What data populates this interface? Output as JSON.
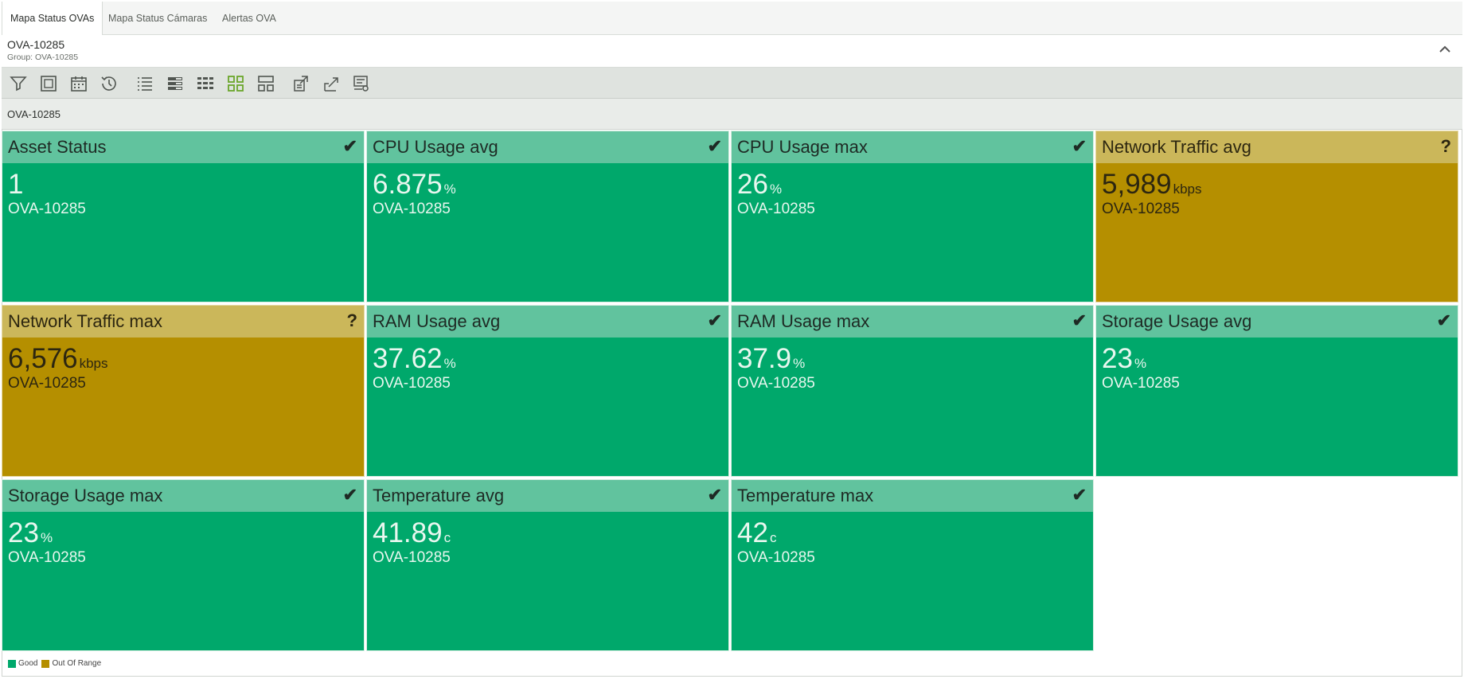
{
  "tabs": [
    {
      "label": "Mapa Status OVAs",
      "active": true
    },
    {
      "label": "Mapa Status Cámaras",
      "active": false
    },
    {
      "label": "Alertas OVA",
      "active": false
    }
  ],
  "header": {
    "title": "OVA-10285",
    "subtitle": "Group: OVA-10285"
  },
  "toolbar": {
    "icons": [
      "filter-icon",
      "zoom-fit-icon",
      "calendar-icon",
      "history-icon",
      "list-icon",
      "list-detail-icon",
      "compact-grid-icon",
      "tile-grid-icon",
      "split-layout-icon",
      "export-icon",
      "report-icon",
      "config-icon"
    ]
  },
  "breadcrumb": {
    "label": "OVA-10285"
  },
  "status_colors": {
    "good": "#00a86b",
    "out_of_range": "#b58f00"
  },
  "tiles": [
    {
      "title": "Asset Status",
      "value": "1",
      "unit": "",
      "asset": "OVA-10285",
      "status": "good",
      "mark": "✔"
    },
    {
      "title": "CPU Usage avg",
      "value": "6.875",
      "unit": "%",
      "asset": "OVA-10285",
      "status": "good",
      "mark": "✔"
    },
    {
      "title": "CPU Usage max",
      "value": "26",
      "unit": "%",
      "asset": "OVA-10285",
      "status": "good",
      "mark": "✔"
    },
    {
      "title": "Network Traffic avg",
      "value": "5,989",
      "unit": "kbps",
      "asset": "OVA-10285",
      "status": "out_of_range",
      "mark": "?"
    },
    {
      "title": "Network Traffic max",
      "value": "6,576",
      "unit": "kbps",
      "asset": "OVA-10285",
      "status": "out_of_range",
      "mark": "?"
    },
    {
      "title": "RAM Usage avg",
      "value": "37.62",
      "unit": "%",
      "asset": "OVA-10285",
      "status": "good",
      "mark": "✔"
    },
    {
      "title": "RAM Usage max",
      "value": "37.9",
      "unit": "%",
      "asset": "OVA-10285",
      "status": "good",
      "mark": "✔"
    },
    {
      "title": "Storage Usage avg",
      "value": "23",
      "unit": "%",
      "asset": "OVA-10285",
      "status": "good",
      "mark": "✔"
    },
    {
      "title": "Storage Usage max",
      "value": "23",
      "unit": "%",
      "asset": "OVA-10285",
      "status": "good",
      "mark": "✔"
    },
    {
      "title": "Temperature avg",
      "value": "41.89",
      "unit": "c",
      "asset": "OVA-10285",
      "status": "good",
      "mark": "✔"
    },
    {
      "title": "Temperature max",
      "value": "42",
      "unit": "c",
      "asset": "OVA-10285",
      "status": "good",
      "mark": "✔"
    }
  ],
  "legend": [
    {
      "label": "Good",
      "color": "#00a86b"
    },
    {
      "label": "Out Of Range",
      "color": "#b58f00"
    }
  ]
}
